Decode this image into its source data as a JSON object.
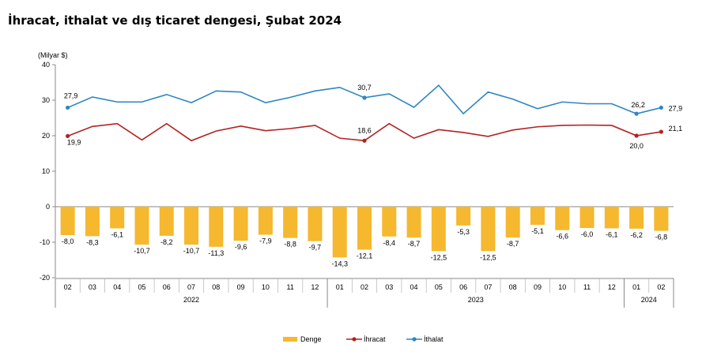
{
  "title": "İhracat, ithalat ve dış ticaret dengesi, Şubat 2024",
  "chart_data": {
    "type": "bar+line",
    "y_unit_label": "(Milyar $)",
    "ylim": [
      -20,
      40
    ],
    "yticks": [
      "40",
      "30",
      "20",
      "10",
      "0",
      "-10",
      "-20"
    ],
    "ytick_values": [
      40,
      30,
      20,
      10,
      0,
      -10,
      -20
    ],
    "categories": [
      "02",
      "03",
      "04",
      "05",
      "06",
      "07",
      "08",
      "09",
      "10",
      "11",
      "12",
      "01",
      "02",
      "03",
      "04",
      "05",
      "06",
      "07",
      "08",
      "09",
      "10",
      "11",
      "12",
      "01",
      "02"
    ],
    "years": [
      {
        "label": "2022",
        "from": 0,
        "to": 10
      },
      {
        "label": "2023",
        "from": 11,
        "to": 22
      },
      {
        "label": "2024",
        "from": 23,
        "to": 24
      }
    ],
    "series": [
      {
        "name": "Denge",
        "kind": "bar",
        "color": "#F5B82E",
        "values": [
          -8.0,
          -8.3,
          -6.1,
          -10.7,
          -8.2,
          -10.7,
          -11.3,
          -9.6,
          -7.9,
          -8.8,
          -9.7,
          -14.3,
          -12.1,
          -8.4,
          -8.7,
          -12.5,
          -5.3,
          -12.5,
          -8.7,
          -5.1,
          -6.6,
          -6.0,
          -6.1,
          -6.2,
          -6.8
        ],
        "labels": [
          "-8,0",
          "-8,3",
          "-6,1",
          "-10,7",
          "-8,2",
          "-10,7",
          "-11,3",
          "-9,6",
          "-7,9",
          "-8,8",
          "-9,7",
          "-14,3",
          "-12,1",
          "-8,4",
          "-8,7",
          "-12,5",
          "-5,3",
          "-12,5",
          "-8,7",
          "-5,1",
          "-6,6",
          "-6,0",
          "-6,1",
          "-6,2",
          "-6,8"
        ]
      },
      {
        "name": "İhracat",
        "kind": "line",
        "color": "#B22222",
        "values": [
          19.9,
          22.6,
          23.4,
          18.8,
          23.4,
          18.6,
          21.3,
          22.7,
          21.4,
          22.0,
          22.9,
          19.3,
          18.6,
          23.4,
          19.3,
          21.7,
          20.9,
          19.8,
          21.6,
          22.5,
          22.9,
          23.0,
          22.9,
          20.0,
          21.1
        ],
        "point_labels": [
          {
            "i": 0,
            "text": "19,9"
          },
          {
            "i": 12,
            "text": "18,6"
          },
          {
            "i": 23,
            "text": "20,0"
          },
          {
            "i": 24,
            "text": "21,1"
          }
        ]
      },
      {
        "name": "İthalat",
        "kind": "line",
        "color": "#2E86C1",
        "values": [
          27.9,
          30.9,
          29.5,
          29.5,
          31.6,
          29.3,
          32.6,
          32.3,
          29.3,
          30.8,
          32.6,
          33.6,
          30.7,
          31.8,
          28.0,
          34.2,
          26.2,
          32.3,
          30.3,
          27.6,
          29.5,
          29.0,
          29.0,
          26.2,
          27.9
        ],
        "point_labels": [
          {
            "i": 0,
            "text": "27,9"
          },
          {
            "i": 12,
            "text": "30,7"
          },
          {
            "i": 23,
            "text": "26,2"
          },
          {
            "i": 24,
            "text": "27,9"
          }
        ]
      }
    ],
    "legend_position": "bottom-center",
    "grid": false
  }
}
